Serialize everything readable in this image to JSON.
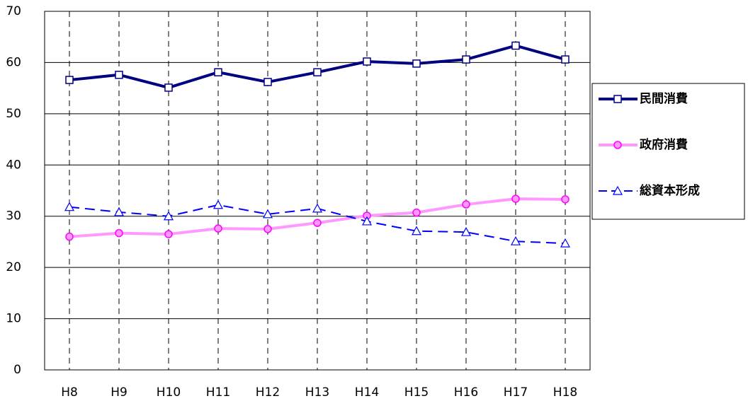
{
  "chart_data": {
    "type": "line",
    "categories": [
      "H8",
      "H9",
      "H10",
      "H11",
      "H12",
      "H13",
      "H14",
      "H15",
      "H16",
      "H17",
      "H18"
    ],
    "series": [
      {
        "name": "民間消費",
        "color": "#000080",
        "marker": "square",
        "dash": false,
        "values": [
          56.6,
          57.6,
          55.1,
          58.1,
          56.2,
          58.1,
          60.2,
          59.8,
          60.6,
          63.3,
          60.6
        ]
      },
      {
        "name": "政府消費",
        "color": "#ff99ff",
        "marker_color": "#ff00ff",
        "marker": "circle",
        "dash": false,
        "values": [
          26.0,
          26.7,
          26.5,
          27.6,
          27.5,
          28.7,
          30.1,
          30.7,
          32.3,
          33.4,
          33.3
        ]
      },
      {
        "name": "総資本形成",
        "color": "#0000ff",
        "marker": "triangle",
        "dash": true,
        "values": [
          31.8,
          30.8,
          30.0,
          32.2,
          30.4,
          31.5,
          29.0,
          27.1,
          26.9,
          25.1,
          24.7
        ]
      }
    ],
    "ylim": [
      0,
      70
    ],
    "yticks": [
      0,
      10,
      20,
      30,
      40,
      50,
      60,
      70
    ],
    "grid": true,
    "legend": "right"
  }
}
